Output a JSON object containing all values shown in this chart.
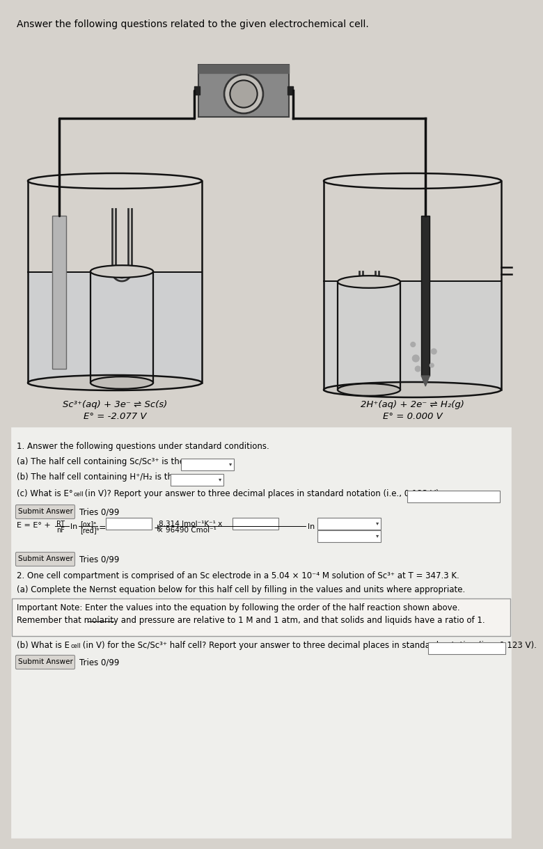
{
  "title_top": "Answer the following questions related to the given electrochemical cell.",
  "left_reaction_line1": "Sc³⁺(aq) + 3e⁻ ⇌ Sc(s)",
  "left_reaction_line2": "E° = -2.077 V",
  "right_reaction_line1": "2H⁺(aq) + 2e⁻ ⇌ H₂(g)",
  "right_reaction_line2": "E° = 0.000 V",
  "bg_top": "#d6d2cc",
  "bg_bottom": "#e0ddd8",
  "panel_bg": "#efefec",
  "section1_title": "1. Answer the following questions under standard conditions.",
  "q1a": "(a) The half cell containing Sc/Sc³⁺ is the",
  "q1b": "(b) The half cell containing H⁺/H₂ is the",
  "submit1": "Submit Answer",
  "tries1": "Tries 0/99",
  "submit2": "Submit Answer",
  "tries2": "Tries 0/99",
  "section2_title": "2. One cell compartment is comprised of an Sc electrode in a 5.04 × 10⁻⁴ M solution of Sc³⁺ at T = 347.3 K.",
  "q2a": "(a) Complete the Nernst equation below for this half cell by filling in the values and units where appropriate.",
  "note1": "Important Note: Enter the values into the equation by following the order of the half reaction shown above.",
  "note2": "Remember that molarity and pressure are relative to 1 M and 1 atm, and that solids and liquids have a ratio of 1.",
  "q2b_pre": "(b) What is E",
  "q2b_sub": "cell",
  "q2b_post": " (in V) for the Sc/Sc³⁺ half cell? Report your answer to three decimal places in standard notation (i.e., 0.123 V).",
  "submit3": "Submit Answer",
  "tries3": "Tries 0/99",
  "line_color": "#333333",
  "beaker_color": "#111111",
  "vm_box_color": "#808080",
  "vm_box_dark": "#606060",
  "electrode_sc_color": "#b0b0b0",
  "electrode_right_color": "#222222"
}
